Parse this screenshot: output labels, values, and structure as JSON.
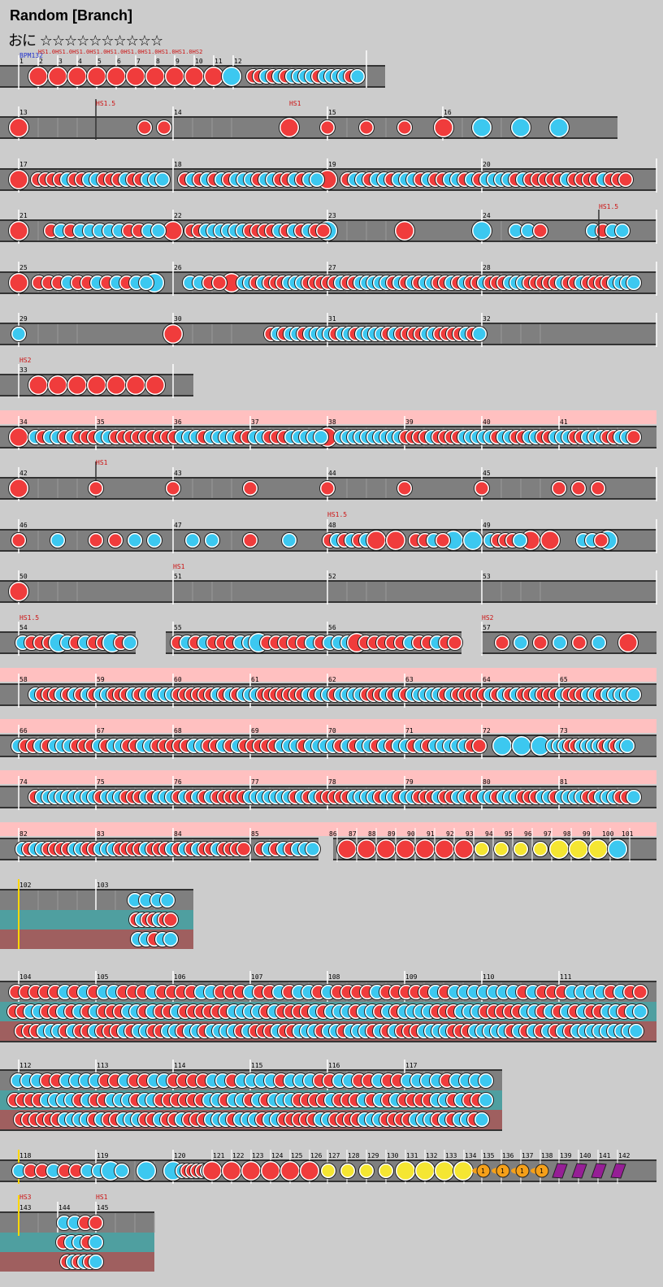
{
  "header": {
    "title": "Random [Branch]",
    "difficulty_label": "おに",
    "stars": "☆☆☆☆☆☆☆☆☆☆"
  },
  "colors": {
    "background": "#cccccc",
    "lane": "#7f7f7f",
    "don": "#f03c3c",
    "ka": "#3cc8f0",
    "drumroll": "#f5e632",
    "balloon": "#f5a019",
    "kusudama": "#961e96",
    "branch_normal_bg": "#ffc0c0",
    "branch_expert": "#4f9fa0",
    "branch_master": "#9f5f5f",
    "bpm_text": "#2233cc",
    "hs_text": "#cc1111"
  },
  "bpm_label": "BPM132",
  "hs_row1": "HS1.0HS1.0HS1.0HS1.0HS1.0HS1.0HS1.0HS1.0HS1.0HS2",
  "rows": [
    {
      "hs": [],
      "measures": [
        "1",
        "2",
        "3",
        "4",
        "5",
        "6",
        "7",
        "8",
        "9",
        "10",
        "11",
        "12"
      ]
    },
    {
      "hs": [
        "HS1.5",
        "HS1"
      ],
      "measures": [
        "13",
        "14",
        "15",
        "16"
      ]
    },
    {
      "hs": [],
      "measures": [
        "17",
        "18",
        "19",
        "20"
      ]
    },
    {
      "hs": [
        "HS1.5"
      ],
      "measures": [
        "21",
        "22",
        "23",
        "24"
      ]
    },
    {
      "hs": [],
      "measures": [
        "25",
        "26",
        "27",
        "28"
      ]
    },
    {
      "hs": [],
      "measures": [
        "29",
        "30",
        "31",
        "32"
      ]
    },
    {
      "hs": [
        "HS2"
      ],
      "measures": [
        "33"
      ]
    },
    {
      "hs": [],
      "measures": [
        "34",
        "35",
        "36",
        "37",
        "38",
        "39",
        "40",
        "41"
      ]
    },
    {
      "hs": [
        "HS1"
      ],
      "measures": [
        "42",
        "43",
        "44",
        "45"
      ]
    },
    {
      "hs": [
        "HS1.5"
      ],
      "measures": [
        "46",
        "47",
        "48",
        "49"
      ]
    },
    {
      "hs": [
        "HS1"
      ],
      "measures": [
        "50",
        "51",
        "52",
        "53"
      ]
    },
    {
      "hs": [
        "HS1.5",
        "HS2"
      ],
      "measures": [
        "54",
        "55",
        "56",
        "57"
      ]
    },
    {
      "hs": [],
      "measures": [
        "58",
        "59",
        "60",
        "61",
        "62",
        "63",
        "64",
        "65"
      ]
    },
    {
      "hs": [],
      "measures": [
        "66",
        "67",
        "68",
        "69",
        "70",
        "71",
        "72",
        "73"
      ]
    },
    {
      "hs": [],
      "measures": [
        "74",
        "75",
        "76",
        "77",
        "78",
        "79",
        "80",
        "81"
      ]
    },
    {
      "hs": [],
      "measures": [
        "82",
        "83",
        "84",
        "85",
        "86",
        "87",
        "88",
        "89",
        "90",
        "91",
        "92",
        "93",
        "94",
        "95",
        "96",
        "97",
        "98",
        "99",
        "100",
        "101"
      ]
    },
    {
      "hs": [],
      "measures": [
        "102",
        "103"
      ]
    },
    {
      "hs": [],
      "measures": [
        "104",
        "105",
        "106",
        "107",
        "108",
        "109",
        "110",
        "111"
      ]
    },
    {
      "hs": [],
      "measures": [
        "112",
        "113",
        "114",
        "115",
        "116",
        "117"
      ]
    },
    {
      "hs": [],
      "measures": [
        "118",
        "119",
        "120",
        "121",
        "122",
        "123",
        "124",
        "125",
        "126",
        "127",
        "128",
        "129",
        "130",
        "131",
        "132",
        "133",
        "134",
        "135",
        "136",
        "137",
        "138",
        "139",
        "140",
        "141",
        "142"
      ]
    },
    {
      "hs": [
        "HS3",
        "HS1"
      ],
      "measures": [
        "143",
        "144",
        "145"
      ]
    }
  ],
  "balloon_count": "1"
}
